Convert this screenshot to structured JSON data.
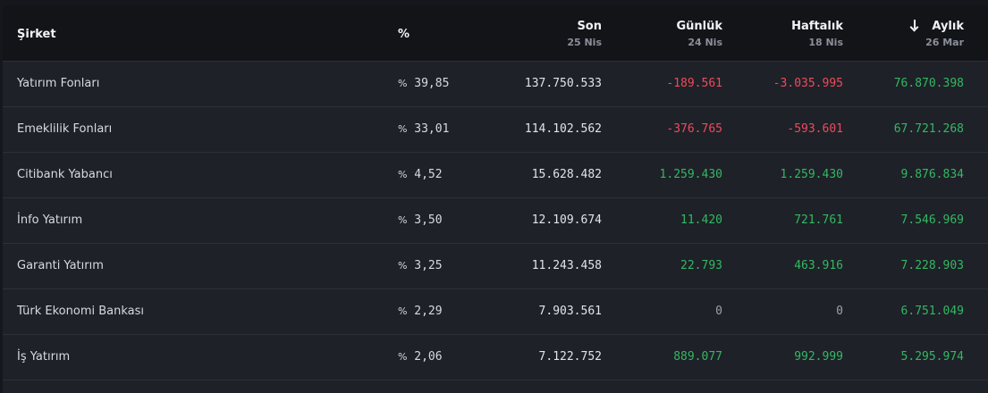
{
  "header": {
    "company": "Şirket",
    "percent": "%",
    "son": {
      "label": "Son",
      "date": "25 Nis"
    },
    "gunluk": {
      "label": "Günlük",
      "date": "24 Nis"
    },
    "haftalik": {
      "label": "Haftalık",
      "date": "18 Nis"
    },
    "aylik": {
      "label": "Aylık",
      "date": "26 Mar"
    },
    "sort_icon": "arrow-down-icon"
  },
  "rows": [
    {
      "name": "Yatırım Fonları",
      "pct": "39,85",
      "son": "137.750.533",
      "gunluk": "-189.561",
      "haftalik": "-3.035.995",
      "aylik": "76.870.398"
    },
    {
      "name": "Emeklilik Fonları",
      "pct": "33,01",
      "son": "114.102.562",
      "gunluk": "-376.765",
      "haftalik": "-593.601",
      "aylik": "67.721.268"
    },
    {
      "name": "Citibank Yabancı",
      "pct": "4,52",
      "son": "15.628.482",
      "gunluk": "1.259.430",
      "haftalik": "1.259.430",
      "aylik": "9.876.834"
    },
    {
      "name": "İnfo Yatırım",
      "pct": "3,50",
      "son": "12.109.674",
      "gunluk": "11.420",
      "haftalik": "721.761",
      "aylik": "7.546.969"
    },
    {
      "name": "Garanti Yatırım",
      "pct": "3,25",
      "son": "11.243.458",
      "gunluk": "22.793",
      "haftalik": "463.916",
      "aylik": "7.228.903"
    },
    {
      "name": "Türk Ekonomi Bankası",
      "pct": "2,29",
      "son": "7.903.561",
      "gunluk": "0",
      "haftalik": "0",
      "aylik": "6.751.049"
    },
    {
      "name": "İş Yatırım",
      "pct": "2,06",
      "son": "7.122.752",
      "gunluk": "889.077",
      "haftalik": "992.999",
      "aylik": "5.295.974"
    }
  ],
  "colors": {
    "negative": "#f04a5a",
    "positive": "#33b862",
    "zero": "#9aa0aa"
  }
}
